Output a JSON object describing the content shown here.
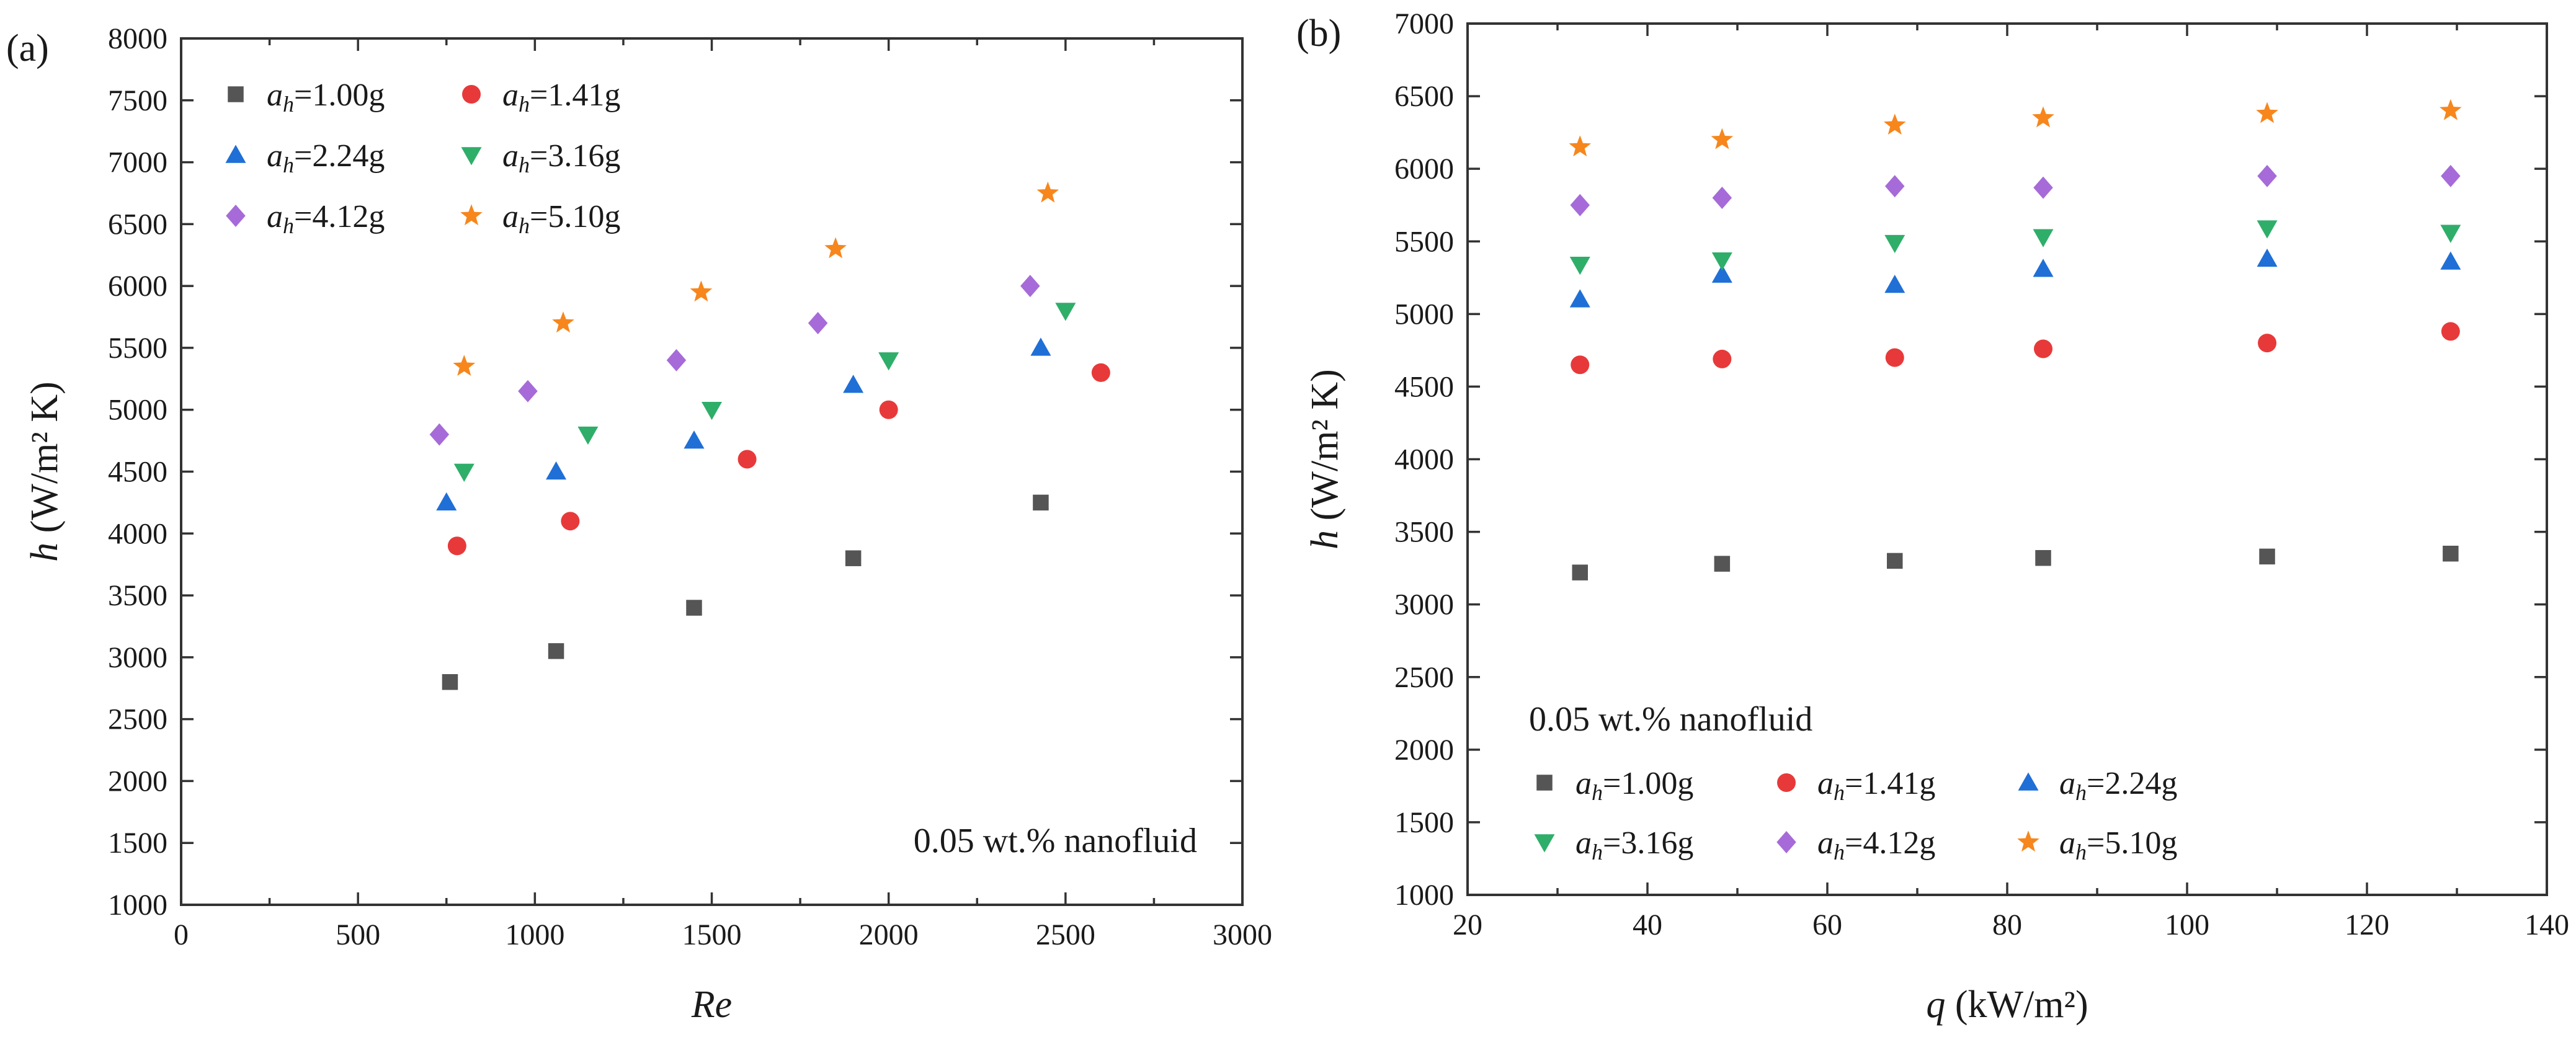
{
  "chart_data": [
    {
      "type": "scatter",
      "panel_label": "(a)",
      "xlabel": "Re",
      "ylabel": {
        "prefix": "h",
        "units": "(W/m² K)"
      },
      "xlim": [
        0,
        3000
      ],
      "ylim": [
        1000,
        8000
      ],
      "xticks": [
        "0",
        "500",
        "1000",
        "1500",
        "2000",
        "2500",
        "3000"
      ],
      "yticks": [
        "1000",
        "1500",
        "2000",
        "2500",
        "3000",
        "3500",
        "4000",
        "4500",
        "5000",
        "5500",
        "6000",
        "6500",
        "7000",
        "7500",
        "8000"
      ],
      "annotation": "0.05 wt.% nanofluid",
      "legend_position": "top-left",
      "series": [
        {
          "name": "ah=1.00g",
          "label_base": "a",
          "label_sub": "h",
          "label_value": "=1.00g",
          "marker": "square",
          "color": "#555555",
          "x": [
            760,
            1060,
            1450,
            1900,
            2430
          ],
          "y": [
            2800,
            3050,
            3400,
            3800,
            4250
          ]
        },
        {
          "name": "ah=1.41g",
          "label_base": "a",
          "label_sub": "h",
          "label_value": "=1.41g",
          "marker": "circle",
          "color": "#e8393a",
          "x": [
            780,
            1100,
            1600,
            2000,
            2600
          ],
          "y": [
            3900,
            4100,
            4600,
            5000,
            5300
          ]
        },
        {
          "name": "ah=2.24g",
          "label_base": "a",
          "label_sub": "h",
          "label_value": "=2.24g",
          "marker": "triangle-up",
          "color": "#1f6fd6",
          "x": [
            750,
            1060,
            1450,
            1900,
            2430
          ],
          "y": [
            4250,
            4500,
            4750,
            5200,
            5500
          ]
        },
        {
          "name": "ah=3.16g",
          "label_base": "a",
          "label_sub": "h",
          "label_value": "=3.16g",
          "marker": "triangle-down",
          "color": "#2fae6a",
          "x": [
            800,
            1150,
            1500,
            2000,
            2500
          ],
          "y": [
            4500,
            4800,
            5000,
            5400,
            5800
          ]
        },
        {
          "name": "ah=4.12g",
          "label_base": "a",
          "label_sub": "h",
          "label_value": "=4.12g",
          "marker": "diamond",
          "color": "#a66bd8",
          "x": [
            730,
            980,
            1400,
            1800,
            2400
          ],
          "y": [
            4800,
            5150,
            5400,
            5700,
            6000
          ]
        },
        {
          "name": "ah=5.10g",
          "label_base": "a",
          "label_sub": "h",
          "label_value": "=5.10g",
          "marker": "star",
          "color": "#f7861c",
          "x": [
            800,
            1080,
            1470,
            1850,
            2450
          ],
          "y": [
            5350,
            5700,
            5950,
            6300,
            6750
          ]
        }
      ]
    },
    {
      "type": "scatter",
      "panel_label": "(b)",
      "xlabel": {
        "prefix": "q",
        "units": "(kW/m²)"
      },
      "ylabel": {
        "prefix": "h",
        "units": "(W/m² K)"
      },
      "xlim": [
        20,
        140
      ],
      "ylim": [
        1000,
        7000
      ],
      "xticks": [
        "20",
        "40",
        "60",
        "80",
        "100",
        "120",
        "140"
      ],
      "yticks": [
        "1000",
        "1500",
        "2000",
        "2500",
        "3000",
        "3500",
        "4000",
        "4500",
        "5000",
        "5500",
        "6000",
        "6500",
        "7000"
      ],
      "annotation": "0.05 wt.% nanofluid",
      "legend_position": "bottom-left",
      "series": [
        {
          "name": "ah=1.00g",
          "label_base": "a",
          "label_sub": "h",
          "label_value": "=1.00g",
          "marker": "square",
          "color": "#555555",
          "x": [
            32.5,
            48.3,
            67.5,
            84,
            108.9,
            129.3
          ],
          "y": [
            3220,
            3280,
            3300,
            3320,
            3330,
            3350
          ]
        },
        {
          "name": "ah=1.41g",
          "label_base": "a",
          "label_sub": "h",
          "label_value": "=1.41g",
          "marker": "circle",
          "color": "#e8393a",
          "x": [
            32.5,
            48.3,
            67.5,
            84,
            108.9,
            129.3
          ],
          "y": [
            4650,
            4690,
            4700,
            4760,
            4800,
            4880
          ]
        },
        {
          "name": "ah=2.24g",
          "label_base": "a",
          "label_sub": "h",
          "label_value": "=2.24g",
          "marker": "triangle-up",
          "color": "#1f6fd6",
          "x": [
            32.5,
            48.3,
            67.5,
            84,
            108.9,
            129.3
          ],
          "y": [
            5100,
            5270,
            5200,
            5310,
            5380,
            5360
          ]
        },
        {
          "name": "ah=3.16g",
          "label_base": "a",
          "label_sub": "h",
          "label_value": "=3.16g",
          "marker": "triangle-down",
          "color": "#2fae6a",
          "x": [
            32.5,
            48.3,
            67.5,
            84,
            108.9,
            129.3
          ],
          "y": [
            5340,
            5370,
            5490,
            5530,
            5590,
            5560
          ]
        },
        {
          "name": "ah=4.12g",
          "label_base": "a",
          "label_sub": "h",
          "label_value": "=4.12g",
          "marker": "diamond",
          "color": "#a66bd8",
          "x": [
            32.5,
            48.3,
            67.5,
            84,
            108.9,
            129.3
          ],
          "y": [
            5750,
            5800,
            5880,
            5870,
            5950,
            5950
          ]
        },
        {
          "name": "ah=5.10g",
          "label_base": "a",
          "label_sub": "h",
          "label_value": "=5.10g",
          "marker": "star",
          "color": "#f7861c",
          "x": [
            32.5,
            48.3,
            67.5,
            84,
            108.9,
            129.3
          ],
          "y": [
            6150,
            6200,
            6300,
            6350,
            6380,
            6400
          ]
        }
      ]
    }
  ]
}
